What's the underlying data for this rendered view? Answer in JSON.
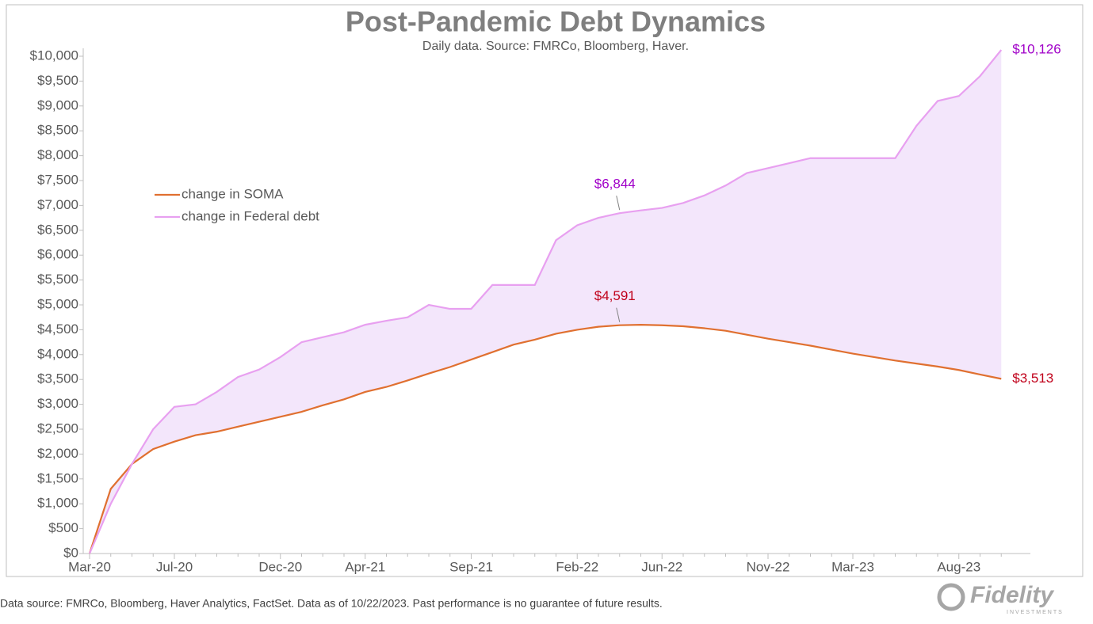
{
  "chart_data": {
    "type": "line",
    "title": "Post-Pandemic Debt Dynamics",
    "subtitle": "Daily data.  Source: FMRCo, Bloomberg, Haver.",
    "categories": [
      "Mar-20",
      null,
      null,
      null,
      "Jul-20",
      null,
      null,
      null,
      null,
      "Dec-20",
      null,
      null,
      null,
      "Apr-21",
      null,
      null,
      null,
      null,
      "Sep-21",
      null,
      null,
      null,
      null,
      "Feb-22",
      null,
      null,
      null,
      "Jun-22",
      null,
      null,
      null,
      null,
      "Nov-22",
      null,
      null,
      null,
      "Mar-23",
      null,
      null,
      null,
      null,
      "Aug-23",
      null,
      null
    ],
    "series": [
      {
        "name": "change in SOMA",
        "color": "#e07030",
        "label_color": "#c0001a",
        "values": [
          0,
          1300,
          1800,
          2100,
          2250,
          2380,
          2450,
          2550,
          2650,
          2750,
          2850,
          2980,
          3100,
          3250,
          3350,
          3480,
          3620,
          3750,
          3900,
          4050,
          4200,
          4300,
          4420,
          4500,
          4560,
          4591,
          4600,
          4590,
          4570,
          4530,
          4480,
          4400,
          4320,
          4250,
          4180,
          4100,
          4020,
          3950,
          3880,
          3820,
          3760,
          3690,
          3600,
          3513
        ],
        "value_labels": [
          null,
          null,
          null,
          null,
          null,
          null,
          null,
          null,
          null,
          null,
          null,
          null,
          null,
          null,
          null,
          null,
          null,
          null,
          null,
          null,
          null,
          null,
          null,
          null,
          null,
          "$4,591",
          null,
          null,
          null,
          null,
          null,
          null,
          null,
          null,
          null,
          null,
          null,
          null,
          null,
          null,
          null,
          null,
          null,
          "$3,513"
        ]
      },
      {
        "name": "change in Federal debt",
        "color": "#e8a0f0",
        "label_color": "#a000c8",
        "values": [
          0,
          1000,
          1800,
          2500,
          2950,
          3000,
          3250,
          3550,
          3700,
          3950,
          4250,
          4350,
          4450,
          4600,
          4680,
          4750,
          5000,
          4920,
          4920,
          5400,
          5400,
          5400,
          6300,
          6600,
          6750,
          6844,
          6900,
          6950,
          7050,
          7200,
          7400,
          7650,
          7750,
          7850,
          7950,
          7950,
          7950,
          7950,
          7950,
          8600,
          9100,
          9200,
          9600,
          10126
        ],
        "value_labels": [
          null,
          null,
          null,
          null,
          null,
          null,
          null,
          null,
          null,
          null,
          null,
          null,
          null,
          null,
          null,
          null,
          null,
          null,
          null,
          null,
          null,
          null,
          null,
          null,
          null,
          "$6,844",
          null,
          null,
          null,
          null,
          null,
          null,
          null,
          null,
          null,
          null,
          null,
          null,
          null,
          null,
          null,
          null,
          null,
          "$10,126"
        ]
      }
    ],
    "fill_between": "#f3e6fb",
    "ylim": [
      0,
      10000
    ],
    "yticks": [
      {
        "value": 0,
        "label": "$0"
      },
      {
        "value": 500,
        "label": "$500"
      },
      {
        "value": 1000,
        "label": "$1,000"
      },
      {
        "value": 1500,
        "label": "$1,500"
      },
      {
        "value": 2000,
        "label": "$2,000"
      },
      {
        "value": 2500,
        "label": "$2,500"
      },
      {
        "value": 3000,
        "label": "$3,000"
      },
      {
        "value": 3500,
        "label": "$3,500"
      },
      {
        "value": 4000,
        "label": "$4,000"
      },
      {
        "value": 4500,
        "label": "$4,500"
      },
      {
        "value": 5000,
        "label": "$5,000"
      },
      {
        "value": 5500,
        "label": "$5,500"
      },
      {
        "value": 6000,
        "label": "$6,000"
      },
      {
        "value": 6500,
        "label": "$6,500"
      },
      {
        "value": 7000,
        "label": "$7,000"
      },
      {
        "value": 7500,
        "label": "$7,500"
      },
      {
        "value": 8000,
        "label": "$8,000"
      },
      {
        "value": 8500,
        "label": "$8,500"
      },
      {
        "value": 9000,
        "label": "$9,000"
      },
      {
        "value": 9500,
        "label": "$9,500"
      },
      {
        "value": 10000,
        "label": "$10,000"
      }
    ],
    "grid": false,
    "legend": "upper left",
    "footnote": "Data source: FMRCo, Bloomberg, Haver Analytics, FactSet. Data as of 10/22/2023. Past performance is no guarantee of future results.",
    "brand": "Fidelity",
    "brand_sub": "INVESTMENTS"
  }
}
